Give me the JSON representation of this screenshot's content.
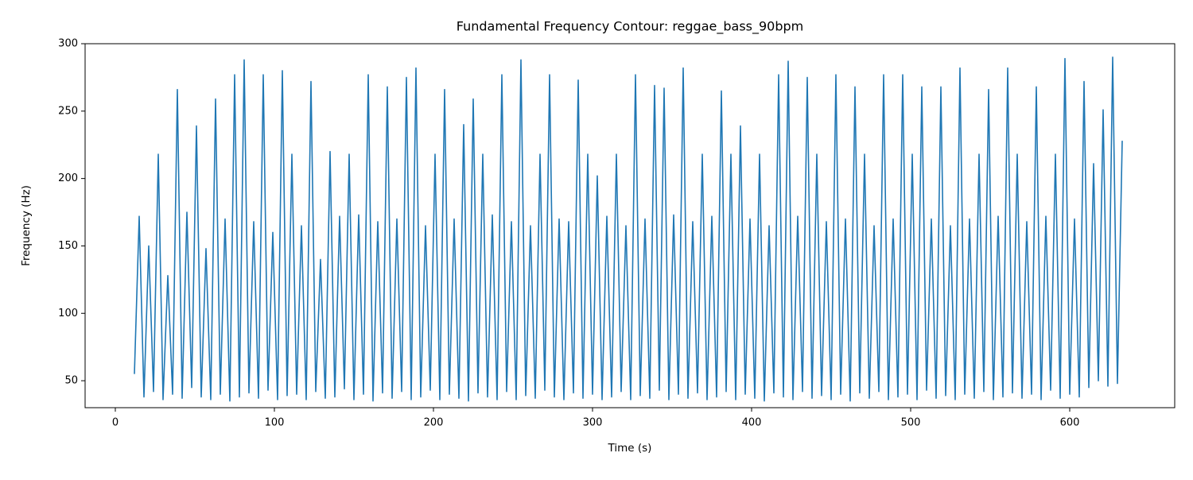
{
  "chart_data": {
    "type": "line",
    "title": "Fundamental Frequency Contour: reggae_bass_90bpm",
    "xlabel": "Time (s)",
    "ylabel": "Frequency (Hz)",
    "xlim": [
      -19,
      666
    ],
    "ylim": [
      30,
      300
    ],
    "xticks": [
      0,
      100,
      200,
      300,
      400,
      500,
      600
    ],
    "yticks": [
      50,
      100,
      150,
      200,
      250,
      300
    ],
    "color": "#1f77b4",
    "x": [
      12,
      15,
      18,
      21,
      24,
      27,
      30,
      33,
      36,
      39,
      42,
      45,
      48,
      51,
      54,
      57,
      60,
      63,
      66,
      69,
      72,
      75,
      78,
      81,
      84,
      87,
      90,
      93,
      96,
      99,
      102,
      105,
      108,
      111,
      114,
      117,
      120,
      123,
      126,
      129,
      132,
      135,
      138,
      141,
      144,
      147,
      150,
      153,
      156,
      159,
      162,
      165,
      168,
      171,
      174,
      177,
      180,
      183,
      186,
      189,
      192,
      195,
      198,
      201,
      204,
      207,
      210,
      213,
      216,
      219,
      222,
      225,
      228,
      231,
      234,
      237,
      240,
      243,
      246,
      249,
      252,
      255,
      258,
      261,
      264,
      267,
      270,
      273,
      276,
      279,
      282,
      285,
      288,
      291,
      294,
      297,
      300,
      303,
      306,
      309,
      312,
      315,
      318,
      321,
      324,
      327,
      330,
      333,
      336,
      339,
      342,
      345,
      348,
      351,
      354,
      357,
      360,
      363,
      366,
      369,
      372,
      375,
      378,
      381,
      384,
      387,
      390,
      393,
      396,
      399,
      402,
      405,
      408,
      411,
      414,
      417,
      420,
      423,
      426,
      429,
      432,
      435,
      438,
      441,
      444,
      447,
      450,
      453,
      456,
      459,
      462,
      465,
      468,
      471,
      474,
      477,
      480,
      483,
      486,
      489,
      492,
      495,
      498,
      501,
      504,
      507,
      510,
      513,
      516,
      519,
      522,
      525,
      528,
      531,
      534,
      537,
      540,
      543,
      546,
      549,
      552,
      555,
      558,
      561,
      564,
      567,
      570,
      573,
      576,
      579,
      582,
      585,
      588,
      591,
      594,
      597,
      600,
      603,
      606,
      609,
      612,
      615,
      618,
      621,
      624,
      627,
      630,
      633
    ],
    "values": [
      55,
      172,
      38,
      150,
      42,
      218,
      36,
      128,
      40,
      266,
      37,
      175,
      45,
      239,
      38,
      148,
      36,
      259,
      40,
      170,
      35,
      277,
      38,
      288,
      41,
      168,
      37,
      277,
      43,
      160,
      36,
      280,
      39,
      218,
      40,
      165,
      36,
      272,
      42,
      140,
      37,
      220,
      38,
      172,
      44,
      218,
      36,
      173,
      40,
      277,
      35,
      168,
      41,
      268,
      37,
      170,
      42,
      275,
      36,
      282,
      38,
      165,
      43,
      218,
      36,
      266,
      40,
      170,
      37,
      240,
      35,
      259,
      41,
      218,
      38,
      173,
      36,
      277,
      42,
      168,
      36,
      288,
      39,
      165,
      37,
      218,
      43,
      277,
      38,
      170,
      36,
      168,
      41,
      273,
      37,
      218,
      40,
      202,
      36,
      172,
      38,
      218,
      42,
      165,
      36,
      277,
      39,
      170,
      37,
      269,
      43,
      267,
      36,
      173,
      40,
      282,
      37,
      168,
      41,
      218,
      36,
      172,
      38,
      265,
      42,
      218,
      36,
      239,
      40,
      170,
      37,
      218,
      35,
      165,
      41,
      277,
      38,
      287,
      36,
      172,
      42,
      275,
      37,
      218,
      39,
      168,
      36,
      277,
      40,
      170,
      35,
      268,
      41,
      218,
      37,
      165,
      42,
      277,
      36,
      170,
      38,
      277,
      40,
      218,
      36,
      268,
      43,
      170,
      37,
      268,
      39,
      165,
      36,
      282,
      40,
      170,
      37,
      218,
      42,
      266,
      36,
      172,
      38,
      282,
      41,
      218,
      37,
      168,
      40,
      268,
      36,
      172,
      43,
      218,
      37,
      289,
      40,
      170,
      38,
      272,
      45,
      211,
      50,
      251,
      46,
      290,
      48,
      228
    ]
  }
}
